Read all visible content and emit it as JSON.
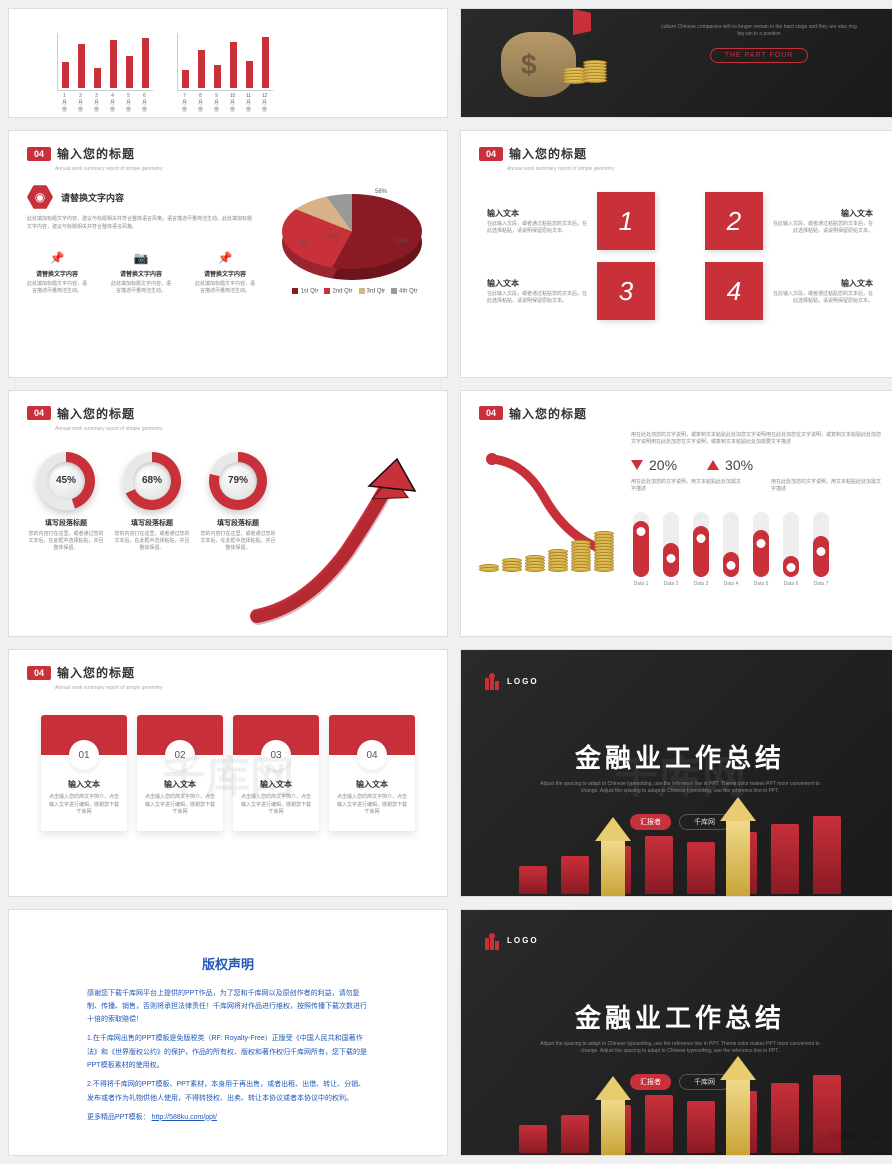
{
  "colors": {
    "accent": "#c8303a",
    "accent_dark": "#8a1a24",
    "dark_bg": "#1a1a1a",
    "text": "#333333",
    "muted": "#888888",
    "blue": "#2258b7",
    "gold": "#e8cc70"
  },
  "watermark": {
    "center": "千库网",
    "corner": "588ku.com"
  },
  "row1": {
    "left": {
      "chart1": {
        "type": "bar",
        "labels": [
          "1月份",
          "2月份",
          "3月份",
          "4月份",
          "5月份",
          "6月份"
        ],
        "values": [
          28,
          48,
          22,
          52,
          35,
          55
        ],
        "bar_color": "#c8303a",
        "ymax": 60
      },
      "chart2": {
        "type": "bar",
        "labels": [
          "7月份",
          "8月份",
          "9月份",
          "10月份",
          "11月份",
          "12月份"
        ],
        "values": [
          20,
          42,
          25,
          50,
          30,
          56
        ],
        "bar_color": "#c8303a",
        "ymax": 60
      }
    },
    "right": {
      "description": "culture Chinese companies will no longer remain in the hard stage and they are also ring big ran in a position",
      "button": "THE PART FOUR"
    }
  },
  "slide2": {
    "badge": "04",
    "title": "输入您的标题",
    "subtitle": "Annual work summary report of simple geometry",
    "left": {
      "head": "请替换文字内容",
      "desc": "此处填加标题文字内容，建议与标题相关并符合整体语言风格，语言描述尽量简洁生动。此处填加标题文字内容，建议与标题相关并符合整体语言风格。",
      "icons": [
        {
          "icon": "📌",
          "title": "请替换文字内容",
          "desc": "此处填加标题文字内容，语言描述尽量简洁生动。"
        },
        {
          "icon": "📷",
          "title": "请替换文字内容",
          "desc": "此处填加标题文字内容，语言描述尽量简洁生动。"
        },
        {
          "icon": "📌",
          "title": "请替换文字内容",
          "desc": "此处填加标题文字内容，语言描述尽量简洁生动。"
        }
      ]
    },
    "pie": {
      "type": "pie",
      "labels": [
        "58%",
        "23%",
        "9%",
        "10%"
      ],
      "legend": [
        "1st Qtr",
        "2nd Qtr",
        "3rd Qtr",
        "4th Qtr"
      ],
      "colors": [
        "#8a1a24",
        "#c8303a",
        "#d8b388",
        "#999999"
      ]
    }
  },
  "slide2r": {
    "badge": "04",
    "title": "输入您的标题",
    "subtitle": "Annual work summary report of simple geometry",
    "boxes": [
      {
        "num": "1",
        "title": "输入文本",
        "desc": "在此输入文段，或者通过粘贴您的文本后，在此选择粘贴，请说明保留原始文本。",
        "side": "right"
      },
      {
        "num": "2",
        "title": "输入文本",
        "desc": "在此输入文段，或者通过粘贴您的文本后，在此选择粘贴，请说明保留原始文本。",
        "side": "left"
      },
      {
        "num": "3",
        "title": "输入文本",
        "desc": "在此输入文段，或者通过粘贴您的文本后，在此选择粘贴，请说明保留原始文本。",
        "side": "right"
      },
      {
        "num": "4",
        "title": "输入文本",
        "desc": "在此输入文段，或者通过粘贴您的文本后，在此选择粘贴，请说明保留原始文本。",
        "side": "left"
      }
    ]
  },
  "slide3": {
    "badge": "04",
    "title": "输入您的标题",
    "subtitle": "Annual work summary report of simple geometry",
    "donuts": [
      {
        "pct": 45,
        "label": "45%",
        "title": "填写段落标题",
        "desc": "您的内容打在这里，或者通过您的文本后，在此框中选择粘贴，并且整体保留。"
      },
      {
        "pct": 68,
        "label": "68%",
        "title": "填写段落标题",
        "desc": "您的内容打在这里，或者通过您的文本后，在此框中选择粘贴，并且整体保留。"
      },
      {
        "pct": 79,
        "label": "79%",
        "title": "填写段落标题",
        "desc": "您的内容打在这里，或者通过您的文本后，在此框中选择粘贴，并且整体保留。"
      }
    ],
    "ring_bg": "#e8e8e8",
    "ring_color": "#c8303a"
  },
  "slide3r": {
    "badge": "04",
    "title": "输入您的标题",
    "desc": "用在此处加您的文字说明，或复制文本粘贴此处加您文字说明用在此处加您在文字说明，或复制文本粘贴此处加您文字说明用在此处加您在文字说明，或复制文本粘贴此处加需要文字描述",
    "stats": [
      {
        "dir": "down",
        "value": "20%",
        "sub": "用在此处加您的文字说明，用文本粘贴此处加需文字描述"
      },
      {
        "dir": "up",
        "value": "30%",
        "sub": "用在此处加您的文字说明，用文本粘贴此处加需文字描述"
      }
    ],
    "capsules": {
      "type": "bar",
      "labels": [
        "Data 1",
        "Data 2",
        "Data 3",
        "Data 4",
        "Data 5",
        "Data 6",
        "Data 7"
      ],
      "values": [
        85,
        52,
        78,
        38,
        72,
        32,
        62
      ],
      "fill_color": "#c8303a",
      "track_color": "#eeeeee",
      "max": 100
    },
    "coin_stacks": [
      18,
      28,
      42,
      58,
      78,
      100
    ]
  },
  "slide4": {
    "badge": "04",
    "title": "输入您的标题",
    "subtitle": "Annual work summary report of simple geometry",
    "cards": [
      {
        "num": "01",
        "title": "输入文本",
        "desc": "点击输入您的简文字简介，点击输入文字进行编辑，感谢您下载千库网"
      },
      {
        "num": "02",
        "title": "输入文本",
        "desc": "点击输入您的简文字简介，点击输入文字进行编辑，感谢您下载千库网"
      },
      {
        "num": "03",
        "title": "输入文本",
        "desc": "点击输入您的简文字简介，点击输入文字进行编辑，感谢您下载千库网"
      },
      {
        "num": "04",
        "title": "输入文本",
        "desc": "点击输入您的简文字简介，点击输入文字进行编辑，感谢您下载千库网"
      }
    ]
  },
  "cover": {
    "logo": "LOGO",
    "title": "金融业工作总结",
    "subtitle": "Adjust the spacing to adapt to Chinese typesetting, use the reference line in PPT. Theme color makes PPT more convenient to change. Adjust the spacing to adapt to Chinese typesetting, use the reference line in PPT.",
    "presenter_label": "汇报者",
    "presenter_name": "千库网",
    "bars": [
      28,
      38,
      48,
      58,
      52,
      62,
      70,
      78
    ]
  },
  "copyright": {
    "title": "版权声明",
    "p1": "感谢您下载千库网平台上提供的PPT作品，为了您和千库网以及原创作者的利益，请勿复制、传播、销售，否则将承担法律责任！千库网将对作品进行维权，按照传播下载次数进行十倍的索取赔偿！",
    "p2": "1.在千库网出售的PPT模板是免版税类（RF: Royalty-Free）正版受《中国人民共和国著作法》和《世界版权公约》的保护，作品的所有权、版权和著作权归千库网所有，您下载的是PPT模板素材的使用权。",
    "p3": "2.不得将千库网的PPT模板、PPT素材，本身用于再出售，或者出租、出借、转让、分销、发布或者作为礼物供他人使用，不得转授权、出卖、转让本协议或者本协议中的权利。",
    "link_label": "更多精品PPT模板：",
    "link": "http://588ku.com/ppt/"
  }
}
